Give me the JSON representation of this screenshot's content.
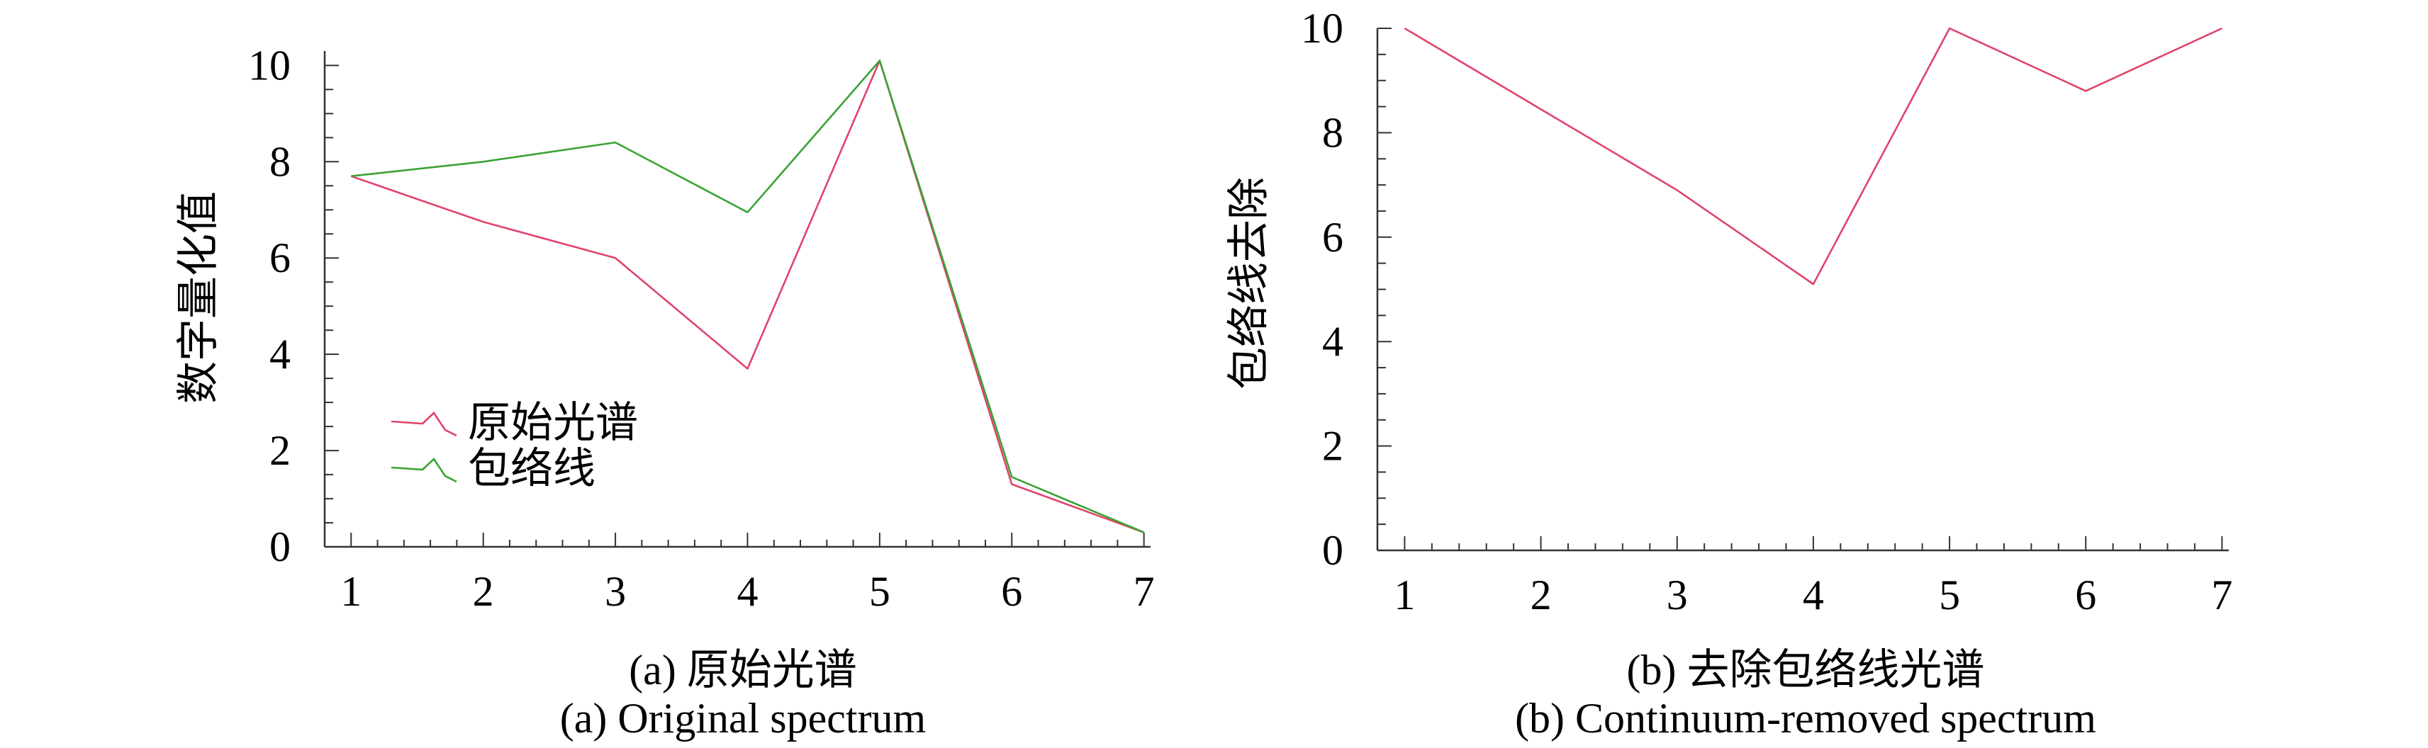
{
  "chart_data": [
    {
      "type": "line",
      "x": [
        1,
        2,
        3,
        4,
        5,
        6,
        7
      ],
      "xlim": [
        0.8,
        7.05
      ],
      "ylim": [
        0,
        10.3
      ],
      "xticks": [
        "1",
        "2",
        "3",
        "4",
        "5",
        "6",
        "7"
      ],
      "yticks": [
        "0",
        "2",
        "4",
        "6",
        "8",
        "10"
      ],
      "ylabel": "数字量化值",
      "caption_cn": "(a) 原始光谱",
      "caption_en": "(a) Original spectrum",
      "legend_position": "lower-left",
      "series": [
        {
          "name": "原始光谱",
          "color": "#e0446a",
          "values": [
            7.7,
            6.75,
            6.0,
            3.7,
            10.1,
            1.3,
            0.3
          ]
        },
        {
          "name": "包络线",
          "color": "#3aa335",
          "values": [
            7.7,
            8.0,
            8.4,
            6.95,
            10.1,
            1.45,
            0.3
          ]
        }
      ]
    },
    {
      "type": "line",
      "x": [
        1,
        2,
        3,
        4,
        5,
        6,
        7
      ],
      "xlim": [
        0.8,
        7.05
      ],
      "ylim": [
        0,
        10
      ],
      "xticks": [
        "1",
        "2",
        "3",
        "4",
        "5",
        "6",
        "7"
      ],
      "yticks": [
        "0",
        "2",
        "4",
        "6",
        "8",
        "10"
      ],
      "ylabel": "包络线去除",
      "caption_cn": "(b) 去除包络线光谱",
      "caption_en": "(b) Continuum-removed spectrum",
      "series": [
        {
          "color": "#e0446a",
          "values": [
            10.0,
            8.45,
            6.9,
            5.1,
            10.0,
            8.8,
            10.0
          ]
        }
      ]
    }
  ]
}
